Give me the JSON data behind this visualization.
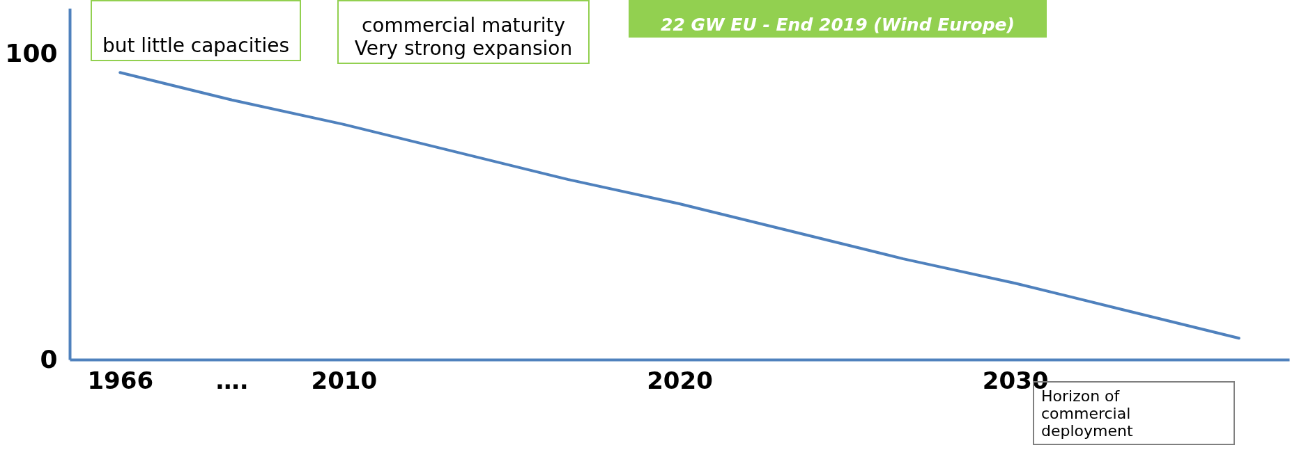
{
  "chart_data": {
    "type": "line",
    "categories": [
      "1966",
      "….",
      "2010",
      null,
      null,
      "2020",
      null,
      null,
      "2030",
      null,
      null
    ],
    "series": [
      {
        "color": "#4f81bd",
        "values": [
          94,
          85,
          77,
          68,
          59,
          51,
          42,
          33,
          25,
          16,
          7
        ]
      }
    ],
    "ylim": [
      0,
      115
    ],
    "yticks": [
      0,
      100
    ],
    "grid": false,
    "marker": "none",
    "line_style": "solid",
    "annotations": [
      "but little capacities",
      "commercial maturity\nVery strong expansion",
      "22 GW  EU  - End 2019 (Wind Europe)",
      "Horizon of\ncommercial deployment"
    ]
  }
}
